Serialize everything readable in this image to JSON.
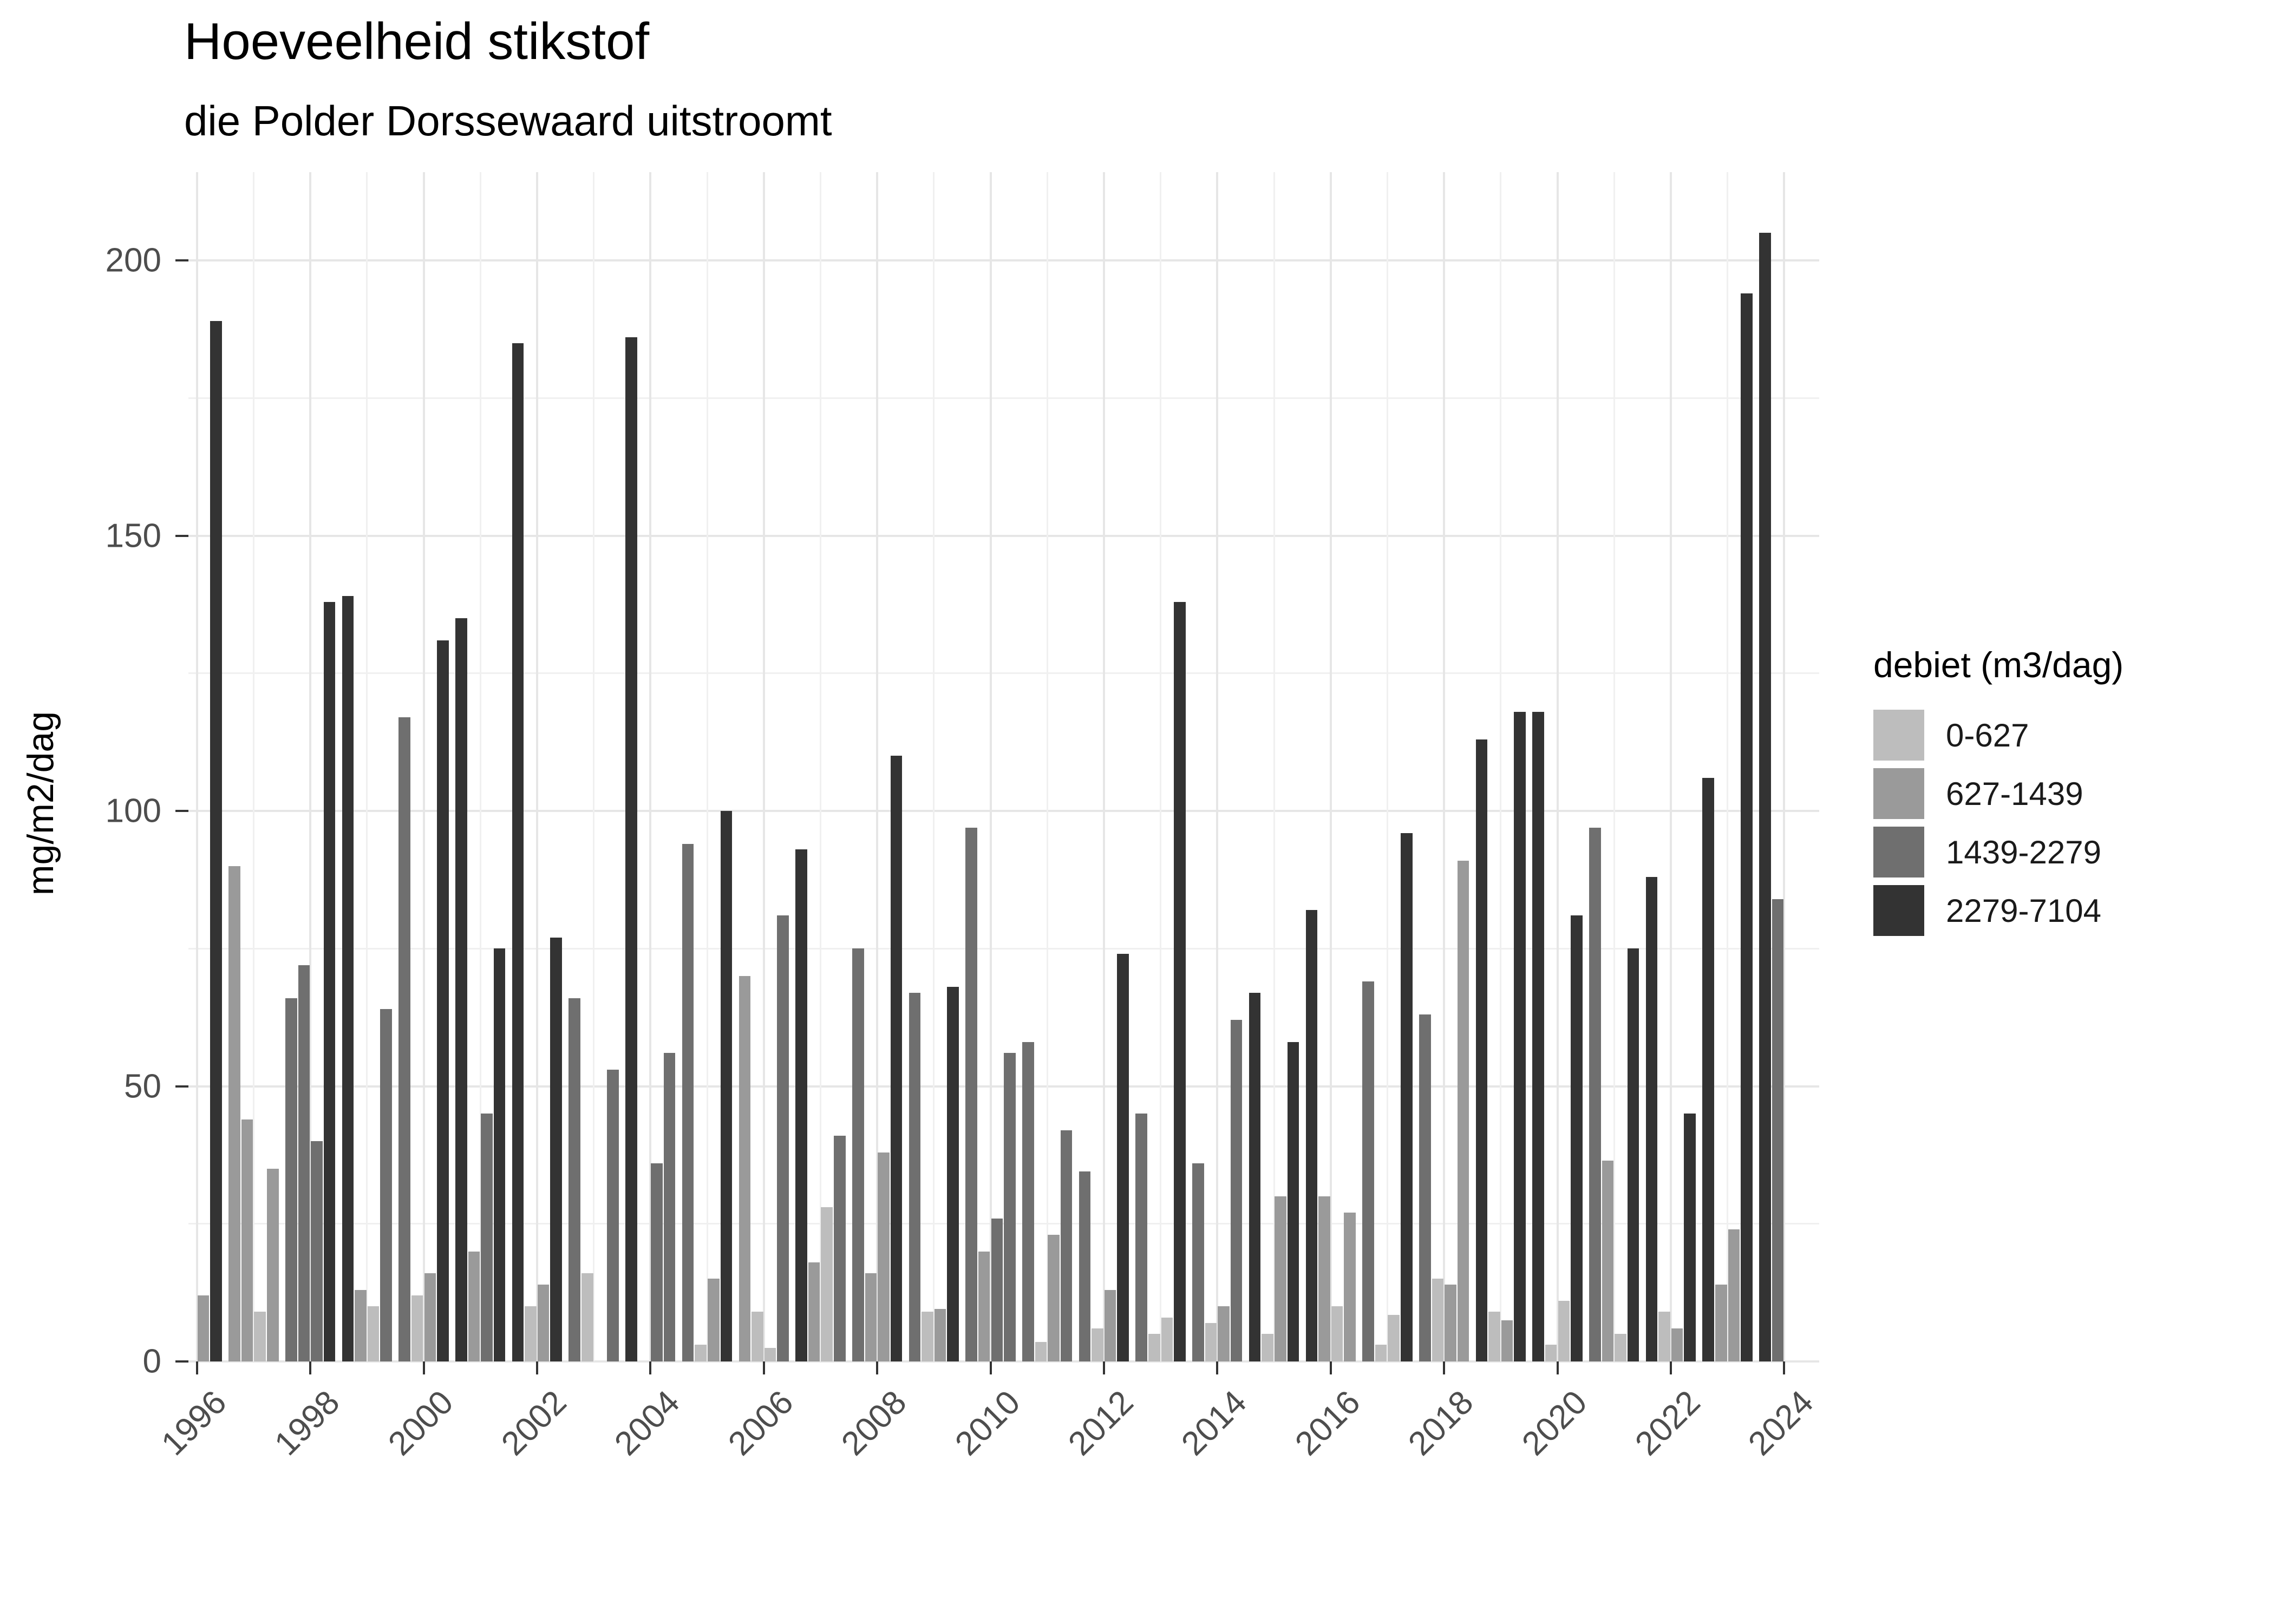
{
  "title": "Hoeveelheid stikstof",
  "subtitle": "die Polder Dorssewaard uitstroomt",
  "y_axis_title": "mg/m2/dag",
  "legend": {
    "title": "debiet (m3/dag)",
    "items": [
      {
        "label": "0-627",
        "color": "#bdbdbd"
      },
      {
        "label": "627-1439",
        "color": "#9a9a9a"
      },
      {
        "label": "1439-2279",
        "color": "#6f6f6f"
      },
      {
        "label": "2279-7104",
        "color": "#333333"
      }
    ]
  },
  "chart_data": {
    "type": "bar",
    "title": "Hoeveelheid stikstof",
    "subtitle": "die Polder Dorssewaard uitstroomt",
    "xlabel": "",
    "ylabel": "mg/m2/dag",
    "ylim": [
      0,
      210
    ],
    "y_major_ticks": [
      0,
      50,
      100,
      150,
      200
    ],
    "y_minor_step": 25,
    "x_tick_years": [
      1996,
      1998,
      2000,
      2002,
      2004,
      2006,
      2008,
      2010,
      2012,
      2014,
      2016,
      2018,
      2020,
      2022,
      2024
    ],
    "x_range_years": [
      1996,
      2024
    ],
    "grid": true,
    "legend_position": "right",
    "series_key": "debiet (m3/dag)",
    "categories": [
      "0-627",
      "627-1439",
      "1439-2279",
      "2279-7104"
    ],
    "bars": [
      {
        "year": 1996,
        "quarter": 3,
        "value": 12,
        "category": "627-1439"
      },
      {
        "year": 1996,
        "quarter": 4,
        "value": 189,
        "category": "2279-7104"
      },
      {
        "year": 1997,
        "quarter": 1,
        "value": 90,
        "category": "627-1439"
      },
      {
        "year": 1997,
        "quarter": 2,
        "value": 44,
        "category": "627-1439"
      },
      {
        "year": 1997,
        "quarter": 3,
        "value": 9,
        "category": "0-627"
      },
      {
        "year": 1997,
        "quarter": 4,
        "value": 35,
        "category": "627-1439"
      },
      {
        "year": 1998,
        "quarter": 1,
        "value": 66,
        "category": "1439-2279"
      },
      {
        "year": 1998,
        "quarter": 2,
        "value": 72,
        "category": "1439-2279"
      },
      {
        "year": 1998,
        "quarter": 3,
        "value": 40,
        "category": "1439-2279"
      },
      {
        "year": 1998,
        "quarter": 4,
        "value": 138,
        "category": "2279-7104"
      },
      {
        "year": 1999,
        "quarter": 1,
        "value": 139,
        "category": "2279-7104"
      },
      {
        "year": 1999,
        "quarter": 2,
        "value": 13,
        "category": "627-1439"
      },
      {
        "year": 1999,
        "quarter": 3,
        "value": 10,
        "category": "0-627"
      },
      {
        "year": 1999,
        "quarter": 4,
        "value": 64,
        "category": "1439-2279"
      },
      {
        "year": 2000,
        "quarter": 1,
        "value": 117,
        "category": "1439-2279"
      },
      {
        "year": 2000,
        "quarter": 2,
        "value": 12,
        "category": "0-627"
      },
      {
        "year": 2000,
        "quarter": 3,
        "value": 16,
        "category": "627-1439"
      },
      {
        "year": 2000,
        "quarter": 4,
        "value": 131,
        "category": "2279-7104"
      },
      {
        "year": 2001,
        "quarter": 1,
        "value": 135,
        "category": "2279-7104"
      },
      {
        "year": 2001,
        "quarter": 2,
        "value": 20,
        "category": "627-1439"
      },
      {
        "year": 2001,
        "quarter": 3,
        "value": 45,
        "category": "1439-2279"
      },
      {
        "year": 2001,
        "quarter": 4,
        "value": 75,
        "category": "2279-7104"
      },
      {
        "year": 2002,
        "quarter": 1,
        "value": 185,
        "category": "2279-7104"
      },
      {
        "year": 2002,
        "quarter": 2,
        "value": 10,
        "category": "0-627"
      },
      {
        "year": 2002,
        "quarter": 3,
        "value": 14,
        "category": "627-1439"
      },
      {
        "year": 2002,
        "quarter": 4,
        "value": 77,
        "category": "2279-7104"
      },
      {
        "year": 2003,
        "quarter": 1,
        "value": 66,
        "category": "1439-2279"
      },
      {
        "year": 2003,
        "quarter": 2,
        "value": 16,
        "category": "0-627"
      },
      {
        "year": 2003,
        "quarter": 4,
        "value": 53,
        "category": "1439-2279"
      },
      {
        "year": 2004,
        "quarter": 1,
        "value": 186,
        "category": "2279-7104"
      },
      {
        "year": 2004,
        "quarter": 3,
        "value": 36,
        "category": "1439-2279"
      },
      {
        "year": 2004,
        "quarter": 4,
        "value": 56,
        "category": "1439-2279"
      },
      {
        "year": 2005,
        "quarter": 1,
        "value": 94,
        "category": "1439-2279"
      },
      {
        "year": 2005,
        "quarter": 2,
        "value": 3,
        "category": "0-627"
      },
      {
        "year": 2005,
        "quarter": 3,
        "value": 15,
        "category": "627-1439"
      },
      {
        "year": 2005,
        "quarter": 4,
        "value": 100,
        "category": "2279-7104"
      },
      {
        "year": 2006,
        "quarter": 1,
        "value": 70,
        "category": "627-1439"
      },
      {
        "year": 2006,
        "quarter": 2,
        "value": 9,
        "category": "0-627"
      },
      {
        "year": 2006,
        "quarter": 3,
        "value": 2.5,
        "category": "0-627"
      },
      {
        "year": 2006,
        "quarter": 4,
        "value": 81,
        "category": "1439-2279"
      },
      {
        "year": 2007,
        "quarter": 1,
        "value": 93,
        "category": "2279-7104"
      },
      {
        "year": 2007,
        "quarter": 2,
        "value": 18,
        "category": "627-1439"
      },
      {
        "year": 2007,
        "quarter": 3,
        "value": 28,
        "category": "0-627"
      },
      {
        "year": 2007,
        "quarter": 4,
        "value": 41,
        "category": "1439-2279"
      },
      {
        "year": 2008,
        "quarter": 1,
        "value": 75,
        "category": "1439-2279"
      },
      {
        "year": 2008,
        "quarter": 2,
        "value": 16,
        "category": "627-1439"
      },
      {
        "year": 2008,
        "quarter": 3,
        "value": 38,
        "category": "627-1439"
      },
      {
        "year": 2008,
        "quarter": 4,
        "value": 110,
        "category": "2279-7104"
      },
      {
        "year": 2009,
        "quarter": 1,
        "value": 67,
        "category": "1439-2279"
      },
      {
        "year": 2009,
        "quarter": 2,
        "value": 9,
        "category": "0-627"
      },
      {
        "year": 2009,
        "quarter": 3,
        "value": 9.5,
        "category": "627-1439"
      },
      {
        "year": 2009,
        "quarter": 4,
        "value": 68,
        "category": "2279-7104"
      },
      {
        "year": 2010,
        "quarter": 1,
        "value": 97,
        "category": "1439-2279"
      },
      {
        "year": 2010,
        "quarter": 2,
        "value": 20,
        "category": "627-1439"
      },
      {
        "year": 2010,
        "quarter": 3,
        "value": 26,
        "category": "1439-2279"
      },
      {
        "year": 2010,
        "quarter": 4,
        "value": 56,
        "category": "1439-2279"
      },
      {
        "year": 2011,
        "quarter": 1,
        "value": 58,
        "category": "1439-2279"
      },
      {
        "year": 2011,
        "quarter": 2,
        "value": 3.5,
        "category": "0-627"
      },
      {
        "year": 2011,
        "quarter": 3,
        "value": 23,
        "category": "627-1439"
      },
      {
        "year": 2011,
        "quarter": 4,
        "value": 42,
        "category": "1439-2279"
      },
      {
        "year": 2012,
        "quarter": 1,
        "value": 34.5,
        "category": "1439-2279"
      },
      {
        "year": 2012,
        "quarter": 2,
        "value": 6,
        "category": "0-627"
      },
      {
        "year": 2012,
        "quarter": 3,
        "value": 13,
        "category": "627-1439"
      },
      {
        "year": 2012,
        "quarter": 4,
        "value": 74,
        "category": "2279-7104"
      },
      {
        "year": 2013,
        "quarter": 1,
        "value": 45,
        "category": "1439-2279"
      },
      {
        "year": 2013,
        "quarter": 2,
        "value": 5,
        "category": "0-627"
      },
      {
        "year": 2013,
        "quarter": 3,
        "value": 8,
        "category": "0-627"
      },
      {
        "year": 2013,
        "quarter": 4,
        "value": 138,
        "category": "2279-7104"
      },
      {
        "year": 2014,
        "quarter": 1,
        "value": 36,
        "category": "1439-2279"
      },
      {
        "year": 2014,
        "quarter": 2,
        "value": 7,
        "category": "0-627"
      },
      {
        "year": 2014,
        "quarter": 3,
        "value": 10,
        "category": "627-1439"
      },
      {
        "year": 2014,
        "quarter": 4,
        "value": 62,
        "category": "1439-2279"
      },
      {
        "year": 2015,
        "quarter": 1,
        "value": 67,
        "category": "2279-7104"
      },
      {
        "year": 2015,
        "quarter": 2,
        "value": 5,
        "category": "0-627"
      },
      {
        "year": 2015,
        "quarter": 3,
        "value": 30,
        "category": "627-1439"
      },
      {
        "year": 2015,
        "quarter": 4,
        "value": 58,
        "category": "2279-7104"
      },
      {
        "year": 2016,
        "quarter": 1,
        "value": 82,
        "category": "2279-7104"
      },
      {
        "year": 2016,
        "quarter": 2,
        "value": 30,
        "category": "627-1439"
      },
      {
        "year": 2016,
        "quarter": 3,
        "value": 10,
        "category": "0-627"
      },
      {
        "year": 2016,
        "quarter": 4,
        "value": 27,
        "category": "627-1439"
      },
      {
        "year": 2017,
        "quarter": 1,
        "value": 69,
        "category": "1439-2279"
      },
      {
        "year": 2017,
        "quarter": 2,
        "value": 3,
        "category": "0-627"
      },
      {
        "year": 2017,
        "quarter": 3,
        "value": 8.5,
        "category": "0-627"
      },
      {
        "year": 2017,
        "quarter": 4,
        "value": 96,
        "category": "2279-7104"
      },
      {
        "year": 2018,
        "quarter": 1,
        "value": 63,
        "category": "1439-2279"
      },
      {
        "year": 2018,
        "quarter": 2,
        "value": 15,
        "category": "0-627"
      },
      {
        "year": 2018,
        "quarter": 3,
        "value": 14,
        "category": "627-1439"
      },
      {
        "year": 2018,
        "quarter": 4,
        "value": 91,
        "category": "627-1439"
      },
      {
        "year": 2019,
        "quarter": 1,
        "value": 113,
        "category": "2279-7104"
      },
      {
        "year": 2019,
        "quarter": 2,
        "value": 9,
        "category": "0-627"
      },
      {
        "year": 2019,
        "quarter": 3,
        "value": 7.5,
        "category": "627-1439"
      },
      {
        "year": 2019,
        "quarter": 4,
        "value": 118,
        "category": "2279-7104"
      },
      {
        "year": 2020,
        "quarter": 1,
        "value": 118,
        "category": "2279-7104"
      },
      {
        "year": 2020,
        "quarter": 2,
        "value": 3,
        "category": "0-627"
      },
      {
        "year": 2020,
        "quarter": 3,
        "value": 11,
        "category": "0-627"
      },
      {
        "year": 2020,
        "quarter": 4,
        "value": 81,
        "category": "2279-7104"
      },
      {
        "year": 2021,
        "quarter": 1,
        "value": 97,
        "category": "1439-2279"
      },
      {
        "year": 2021,
        "quarter": 2,
        "value": 36.5,
        "category": "627-1439"
      },
      {
        "year": 2021,
        "quarter": 3,
        "value": 5,
        "category": "0-627"
      },
      {
        "year": 2021,
        "quarter": 4,
        "value": 75,
        "category": "2279-7104"
      },
      {
        "year": 2022,
        "quarter": 1,
        "value": 88,
        "category": "2279-7104"
      },
      {
        "year": 2022,
        "quarter": 2,
        "value": 9,
        "category": "0-627"
      },
      {
        "year": 2022,
        "quarter": 3,
        "value": 6,
        "category": "627-1439"
      },
      {
        "year": 2022,
        "quarter": 4,
        "value": 45,
        "category": "2279-7104"
      },
      {
        "year": 2023,
        "quarter": 1,
        "value": 106,
        "category": "2279-7104"
      },
      {
        "year": 2023,
        "quarter": 2,
        "value": 14,
        "category": "627-1439"
      },
      {
        "year": 2023,
        "quarter": 3,
        "value": 24,
        "category": "627-1439"
      },
      {
        "year": 2023,
        "quarter": 4,
        "value": 194,
        "category": "2279-7104"
      },
      {
        "year": 2024,
        "quarter": 1,
        "value": 205,
        "category": "2279-7104"
      },
      {
        "year": 2024,
        "quarter": 2,
        "value": 84,
        "category": "1439-2279"
      }
    ]
  },
  "colors": {
    "background": "#ffffff",
    "grid_major": "#e6e6e6",
    "grid_minor": "#f0f0f0",
    "axis_text": "#4d4d4d",
    "tick_mark": "#333333",
    "category_colors": {
      "0-627": "#bdbdbd",
      "627-1439": "#9a9a9a",
      "1439-2279": "#6f6f6f",
      "2279-7104": "#333333"
    }
  },
  "y_tick_labels": [
    "0",
    "50",
    "100",
    "150",
    "200"
  ],
  "x_tick_labels": [
    "1996",
    "1998",
    "2000",
    "2002",
    "2004",
    "2006",
    "2008",
    "2010",
    "2012",
    "2014",
    "2016",
    "2018",
    "2020",
    "2022",
    "2024"
  ]
}
